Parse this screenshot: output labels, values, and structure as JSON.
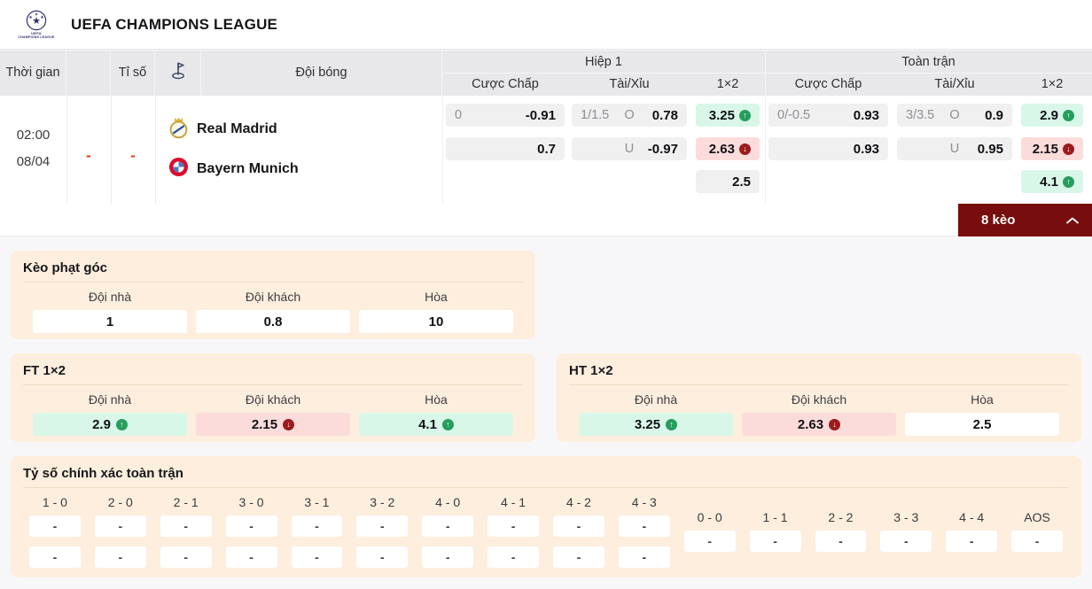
{
  "league": {
    "title": "UEFA CHAMPIONS LEAGUE",
    "logo_text_1": "UEFA",
    "logo_text_2": "CHAMPIONS LEAGUE"
  },
  "table_header": {
    "time": "Thời gian",
    "score": "Tỉ số",
    "team": "Đội bóng",
    "group_h1": "Hiệp 1",
    "group_ft": "Toàn trận",
    "handicap": "Cược Chấp",
    "over_under": "Tài/Xỉu",
    "x12": "1×2"
  },
  "match": {
    "time": "02:00",
    "date": "08/04",
    "home_score": "-",
    "away_score": "-",
    "home_team": "Real Madrid",
    "away_team": "Bayern Munich",
    "h1": {
      "handicap": [
        {
          "line": "0",
          "odds": "-0.91"
        },
        {
          "line": "",
          "odds": "0.7"
        }
      ],
      "over_under": [
        {
          "line": "1/1.5",
          "side": "O",
          "odds": "0.78"
        },
        {
          "line": "",
          "side": "U",
          "odds": "-0.97"
        }
      ],
      "x12": [
        {
          "odds": "3.25",
          "trend": "up"
        },
        {
          "odds": "2.63",
          "trend": "down"
        },
        {
          "odds": "2.5",
          "trend": "none"
        }
      ]
    },
    "ft": {
      "handicap": [
        {
          "line": "0/-0.5",
          "odds": "0.93"
        },
        {
          "line": "",
          "odds": "0.93"
        }
      ],
      "over_under": [
        {
          "line": "3/3.5",
          "side": "O",
          "odds": "0.9"
        },
        {
          "line": "",
          "side": "U",
          "odds": "0.95"
        }
      ],
      "x12": [
        {
          "odds": "2.9",
          "trend": "up"
        },
        {
          "odds": "2.15",
          "trend": "down"
        },
        {
          "odds": "4.1",
          "trend": "up"
        }
      ]
    }
  },
  "more_bets": {
    "label": "8 kèo"
  },
  "sections": {
    "corner": {
      "title": "Kèo phạt góc",
      "labels": [
        "Đội nhà",
        "Đội khách",
        "Hòa"
      ],
      "odds": [
        {
          "value": "1",
          "trend": "none"
        },
        {
          "value": "0.8",
          "trend": "none"
        },
        {
          "value": "10",
          "trend": "none"
        }
      ]
    },
    "ft_1x2": {
      "title": "FT 1×2",
      "labels": [
        "Đội nhà",
        "Đội khách",
        "Hòa"
      ],
      "odds": [
        {
          "value": "2.9",
          "trend": "up"
        },
        {
          "value": "2.15",
          "trend": "down"
        },
        {
          "value": "4.1",
          "trend": "up"
        }
      ]
    },
    "ht_1x2": {
      "title": "HT 1×2",
      "labels": [
        "Đội nhà",
        "Đội khách",
        "Hòa"
      ],
      "odds": [
        {
          "value": "3.25",
          "trend": "up"
        },
        {
          "value": "2.63",
          "trend": "down"
        },
        {
          "value": "2.5",
          "trend": "none"
        }
      ]
    },
    "correct_score": {
      "title": "Tỷ số chính xác toàn trận",
      "win_scores": [
        "1 - 0",
        "2 - 0",
        "2 - 1",
        "3 - 0",
        "3 - 1",
        "3 - 2",
        "4 - 0",
        "4 - 1",
        "4 - 2",
        "4 - 3"
      ],
      "draw_scores": [
        "0 - 0",
        "1 - 1",
        "2 - 2",
        "3 - 3",
        "4 - 4",
        "AOS"
      ],
      "placeholder": "-"
    }
  },
  "colors": {
    "accent_maroon": "#780d0d",
    "up_green": "#269e5c",
    "down_red": "#9c1b1e",
    "up_bg": "#d9f7e9",
    "down_bg": "#fcdcdb",
    "panel_bg": "#fdeedd"
  }
}
